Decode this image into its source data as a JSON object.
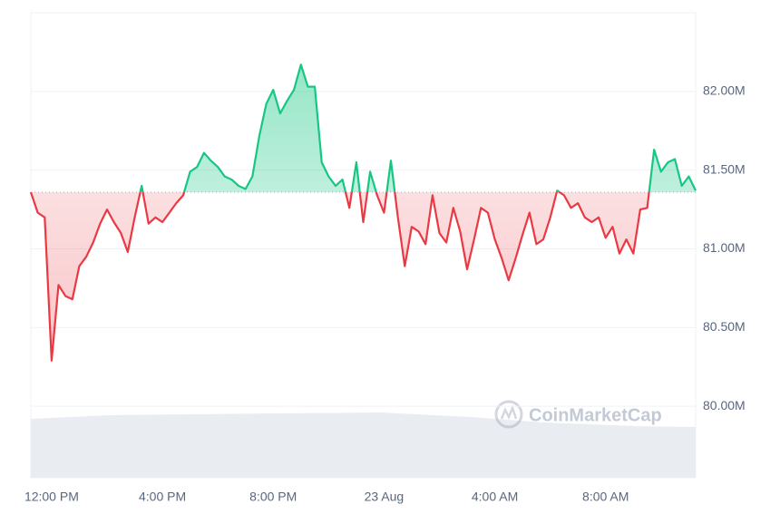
{
  "chart_data": {
    "type": "line",
    "x": [
      11.25,
      11.5,
      11.75,
      12,
      12.25,
      12.5,
      12.75,
      13,
      13.25,
      13.5,
      13.75,
      14,
      14.25,
      14.5,
      14.75,
      15,
      15.25,
      15.5,
      15.75,
      16,
      16.25,
      16.5,
      16.75,
      17,
      17.25,
      17.5,
      17.75,
      18,
      18.25,
      18.5,
      18.75,
      19,
      19.25,
      19.5,
      19.75,
      20,
      20.25,
      20.5,
      20.75,
      21,
      21.25,
      21.5,
      21.75,
      22,
      22.25,
      22.5,
      22.75,
      23,
      23.25,
      23.5,
      23.75,
      24,
      24.25,
      24.5,
      24.75,
      25,
      25.25,
      25.5,
      25.75,
      26,
      26.25,
      26.5,
      26.75,
      27,
      27.25,
      27.5,
      27.75,
      28,
      28.25,
      28.5,
      28.75,
      29,
      29.25,
      29.5,
      29.75,
      30,
      30.25,
      30.5,
      30.75,
      31,
      31.25,
      31.5,
      31.75,
      32,
      32.25,
      32.5,
      32.75,
      33,
      33.25,
      33.5,
      33.75,
      34,
      34.25,
      34.5,
      34.75,
      35,
      35.25
    ],
    "values": [
      81.36,
      81.23,
      81.2,
      80.29,
      80.77,
      80.7,
      80.68,
      80.89,
      80.95,
      81.04,
      81.16,
      81.25,
      81.17,
      81.1,
      80.98,
      81.2,
      81.4,
      81.16,
      81.2,
      81.17,
      81.23,
      81.29,
      81.34,
      81.49,
      81.52,
      81.61,
      81.56,
      81.52,
      81.46,
      81.44,
      81.4,
      81.38,
      81.46,
      81.72,
      81.92,
      82.01,
      81.86,
      81.94,
      82.01,
      82.17,
      82.03,
      82.03,
      81.55,
      81.46,
      81.4,
      81.44,
      81.26,
      81.55,
      81.17,
      81.49,
      81.34,
      81.23,
      81.56,
      81.2,
      80.89,
      81.14,
      81.11,
      81.03,
      81.34,
      81.1,
      81.04,
      81.26,
      81.11,
      80.87,
      81.06,
      81.26,
      81.23,
      81.06,
      80.94,
      80.8,
      80.94,
      81.09,
      81.23,
      81.03,
      81.06,
      81.2,
      81.37,
      81.34,
      81.26,
      81.29,
      81.2,
      81.17,
      81.2,
      81.07,
      81.14,
      80.97,
      81.06,
      80.97,
      81.25,
      81.26,
      81.63,
      81.49,
      81.55,
      81.57,
      81.4,
      81.46,
      81.37
    ],
    "baseline": 81.36,
    "up_color": "#16c784",
    "down_color": "#ea3943",
    "xlim": [
      11.25,
      35.25
    ],
    "xticks": [
      {
        "value": 12,
        "label": "12:00 PM"
      },
      {
        "value": 16,
        "label": "4:00 PM"
      },
      {
        "value": 20,
        "label": "8:00 PM"
      },
      {
        "value": 24,
        "label": "23 Aug"
      },
      {
        "value": 28,
        "label": "4:00 AM"
      },
      {
        "value": 32,
        "label": "8:00 AM"
      }
    ],
    "ylim": [
      79.546,
      82.5
    ],
    "yticks": [
      {
        "value": 80,
        "label": "80.00M"
      },
      {
        "value": 80.5,
        "label": "80.50M"
      },
      {
        "value": 81,
        "label": "81.00M"
      },
      {
        "value": 81.5,
        "label": "81.50M"
      },
      {
        "value": 82,
        "label": "82.00M"
      }
    ],
    "grid": true,
    "watermark": "CoinMarketCap"
  }
}
